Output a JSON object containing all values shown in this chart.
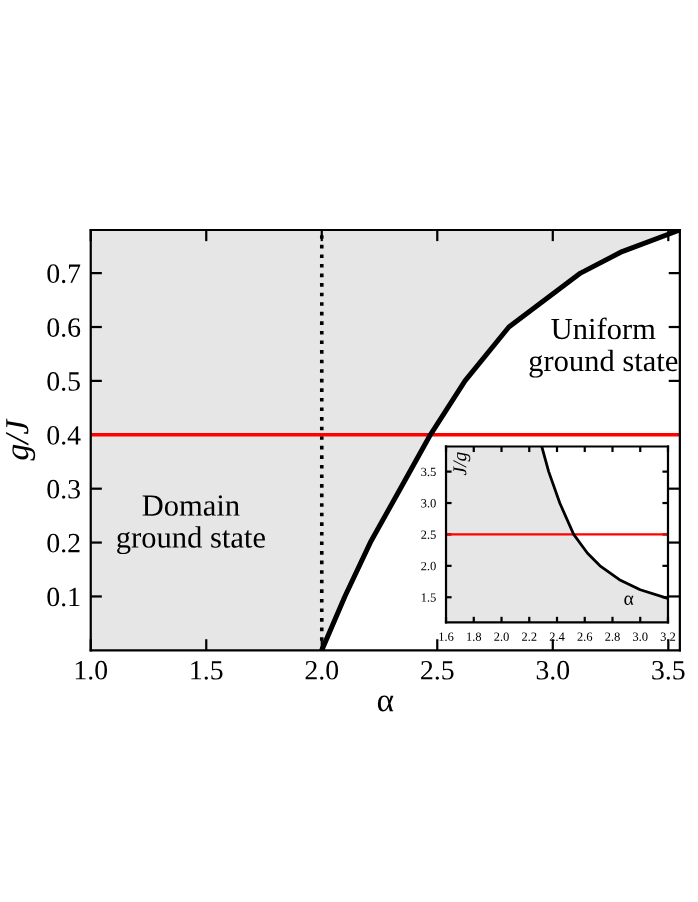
{
  "chart_data": [
    {
      "type": "line",
      "xlabel": "α",
      "ylabel": "g/J",
      "xlim": [
        1.0,
        3.55
      ],
      "ylim": [
        0,
        0.78
      ],
      "xticks": [
        {
          "value": 1,
          "label": "1.0"
        },
        1.5,
        {
          "value": 2,
          "label": "2.0"
        },
        2.5,
        {
          "value": 3,
          "label": "3.0"
        },
        3.5
      ],
      "yticks": [
        0.1,
        0.2,
        0.3,
        0.4,
        0.5,
        0.6,
        0.7
      ],
      "grid": false,
      "line_style": "solid",
      "marker": "none",
      "series": [
        {
          "color": "#000000",
          "x": [
            2.0,
            2.1,
            2.21,
            2.34,
            2.47,
            2.62,
            2.81,
            3.12,
            3.3,
            3.55
          ],
          "values": [
            0,
            0.1,
            0.2,
            0.3,
            0.4,
            0.5,
            0.6,
            0.7,
            0.74,
            0.78
          ]
        }
      ],
      "ref_lines": [
        {
          "axis": "x",
          "value": 2.0,
          "color": "#000000",
          "line_style": "dotted"
        },
        {
          "axis": "y",
          "value": 0.4,
          "color": "#ff0000",
          "line_style": "solid"
        }
      ],
      "annotations": [
        "Domain\nground state",
        "Uniform\nground state"
      ]
    },
    {
      "type": "line",
      "xlabel": "α",
      "ylabel": "J/g",
      "xlim": [
        1.6,
        3.2
      ],
      "ylim": [
        1.1,
        3.9
      ],
      "xticks": [
        1.6,
        1.8,
        {
          "value": 2,
          "label": "2.0"
        },
        2.2,
        2.4,
        2.6,
        2.8,
        {
          "value": 3,
          "label": "3.0"
        },
        3.2
      ],
      "yticks": [
        1.5,
        {
          "value": 2,
          "label": "2.0"
        },
        2.5,
        {
          "value": 3,
          "label": "3.0"
        },
        3.5
      ],
      "grid": false,
      "line_style": "solid",
      "marker": "none",
      "series": [
        {
          "color": "#000000",
          "x": [
            2.29,
            2.34,
            2.42,
            2.52,
            2.62,
            2.71,
            2.85,
            3.0,
            3.2
          ],
          "values": [
            3.9,
            3.5,
            3.0,
            2.5,
            2.2,
            2.0,
            1.78,
            1.62,
            1.48
          ]
        }
      ],
      "ref_lines": [
        {
          "axis": "y",
          "value": 2.5,
          "color": "#ff0000",
          "line_style": "solid"
        }
      ]
    }
  ]
}
